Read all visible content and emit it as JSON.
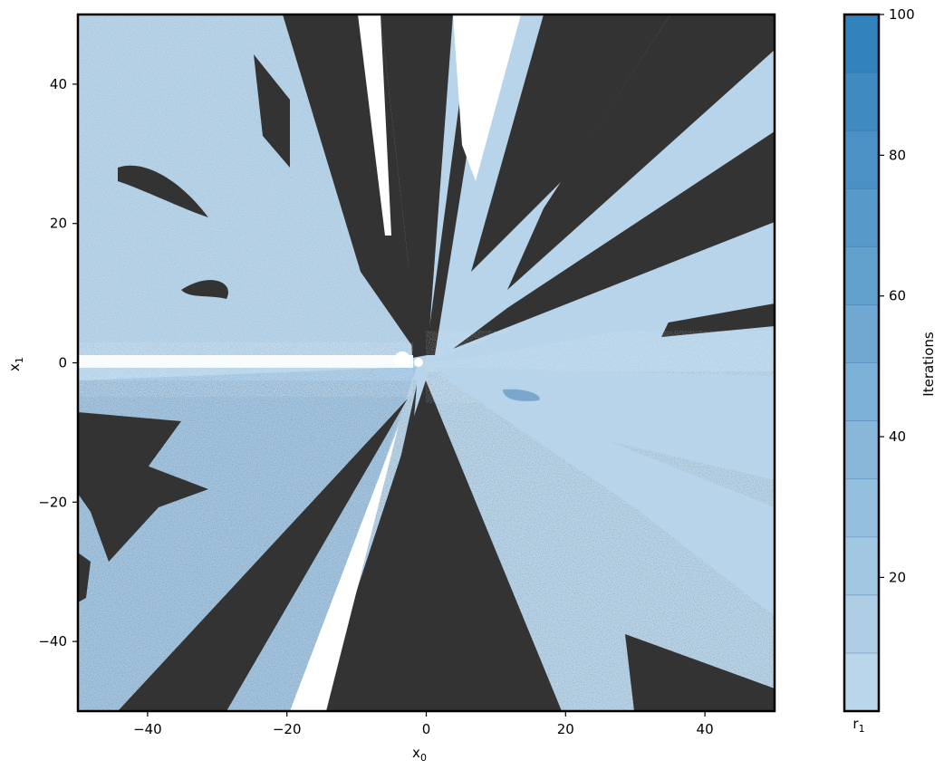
{
  "chart_data": {
    "type": "heatmap",
    "title": "",
    "xlabel": "x",
    "xlabel_sub": "0",
    "ylabel": "x",
    "ylabel_sub": "1",
    "xlim": [
      -50,
      50
    ],
    "ylim": [
      -50,
      50
    ],
    "x_ticks": [
      -40,
      -20,
      0,
      20,
      40
    ],
    "y_ticks": [
      -40,
      -20,
      0,
      20,
      40
    ],
    "x_tick_labels": [
      "−40",
      "−20",
      "0",
      "20",
      "40"
    ],
    "y_tick_labels": [
      "−40",
      "−20",
      "0",
      "20",
      "40"
    ],
    "grid": false,
    "description_colors": {
      "not_converged": "#333333",
      "diverged": "#ffffff",
      "converged_low": "#b7d4ea",
      "converged_high": "#3182bd"
    },
    "colorbar": {
      "label": "Iterations",
      "category_label": "r",
      "category_sub": "1",
      "range": [
        1,
        100
      ],
      "ticks": [
        20,
        40,
        60,
        80,
        100
      ],
      "tick_labels": [
        "20",
        "40",
        "60",
        "80",
        "100"
      ],
      "n_levels": 12,
      "color_low": "#bad6ea",
      "color_high": "#3282bd"
    }
  }
}
